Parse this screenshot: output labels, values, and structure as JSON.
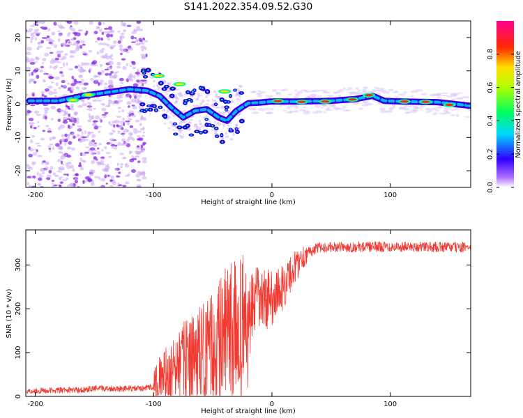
{
  "title": "S141.2022.354.09.52.G30",
  "chart_data": [
    {
      "type": "heatmap",
      "name": "spectrogram",
      "xlabel": "Height of straight line (km)",
      "ylabel": "Frequency (Hz)",
      "xlim": [
        -208,
        168
      ],
      "ylim": [
        -25,
        25
      ],
      "xticks": [
        -200,
        -100,
        0,
        100
      ],
      "yticks": [
        -20,
        -10,
        0,
        10,
        20
      ],
      "main_track": [
        {
          "x": -205,
          "y": 1.0
        },
        {
          "x": -180,
          "y": 1.0
        },
        {
          "x": -160,
          "y": 2.5
        },
        {
          "x": -140,
          "y": 3.5
        },
        {
          "x": -120,
          "y": 4.5
        },
        {
          "x": -105,
          "y": 4.0
        },
        {
          "x": -95,
          "y": 2.5
        },
        {
          "x": -85,
          "y": -1.0
        },
        {
          "x": -75,
          "y": -4.0
        },
        {
          "x": -65,
          "y": -2.0
        },
        {
          "x": -55,
          "y": -1.5
        },
        {
          "x": -45,
          "y": -4.0
        },
        {
          "x": -38,
          "y": -5.0
        },
        {
          "x": -30,
          "y": -2.0
        },
        {
          "x": -20,
          "y": 0.3
        },
        {
          "x": -10,
          "y": 0.5
        },
        {
          "x": 0,
          "y": 0.8
        },
        {
          "x": 20,
          "y": 0.8
        },
        {
          "x": 50,
          "y": 1.0
        },
        {
          "x": 70,
          "y": 1.5
        },
        {
          "x": 85,
          "y": 2.5
        },
        {
          "x": 95,
          "y": 1.0
        },
        {
          "x": 110,
          "y": 0.8
        },
        {
          "x": 140,
          "y": 0.6
        },
        {
          "x": 168,
          "y": -0.5
        }
      ],
      "colorbar": {
        "label": "Normalized spectral amplitude",
        "range": [
          0,
          1
        ],
        "ticks": [
          0.0,
          0.2,
          0.4,
          0.6,
          0.8
        ]
      }
    },
    {
      "type": "line",
      "name": "snr",
      "xlabel": "Height of straight line (km)",
      "ylabel": "SNR (10 * v/v)",
      "xlim": [
        -208,
        168
      ],
      "ylim": [
        0,
        380
      ],
      "xticks": [
        -200,
        -100,
        0,
        100
      ],
      "yticks": [
        0,
        100,
        200,
        300
      ],
      "color": "#f03a32",
      "envelope": [
        {
          "x": -208,
          "y": 12
        },
        {
          "x": -160,
          "y": 15
        },
        {
          "x": -150,
          "y": 18
        },
        {
          "x": -110,
          "y": 18
        },
        {
          "x": -100,
          "y": 22
        },
        {
          "x": -90,
          "y": 40
        },
        {
          "x": -75,
          "y": 75
        },
        {
          "x": -60,
          "y": 90
        },
        {
          "x": -50,
          "y": 100
        },
        {
          "x": -40,
          "y": 140
        },
        {
          "x": -30,
          "y": 150
        },
        {
          "x": -20,
          "y": 160
        },
        {
          "x": -15,
          "y": 215
        },
        {
          "x": 0,
          "y": 225
        },
        {
          "x": 10,
          "y": 250
        },
        {
          "x": 18,
          "y": 290
        },
        {
          "x": 28,
          "y": 325
        },
        {
          "x": 40,
          "y": 340
        },
        {
          "x": 100,
          "y": 342
        },
        {
          "x": 168,
          "y": 340
        }
      ]
    }
  ]
}
